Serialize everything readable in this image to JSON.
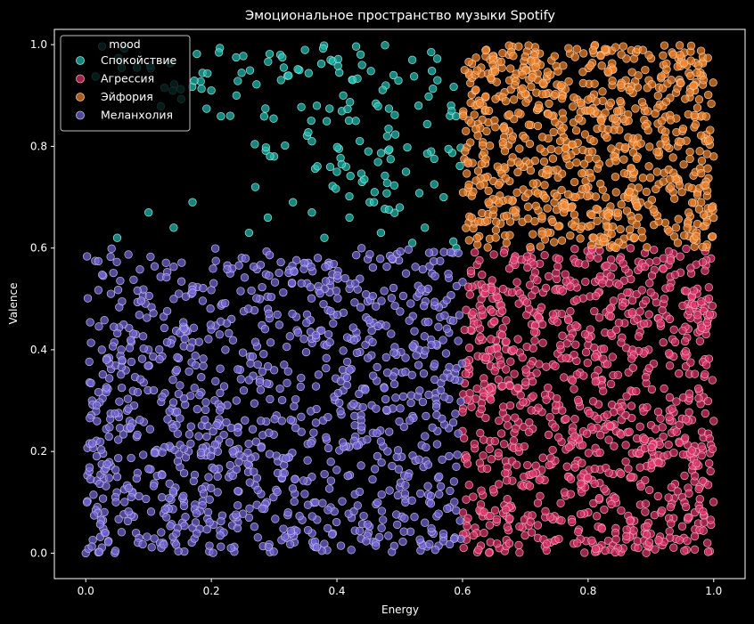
{
  "chart_data": {
    "type": "scatter",
    "title": "Эмоциональное пространство музыки Spotify",
    "xlabel": "Energy",
    "ylabel": "Valence",
    "xlim": [
      -0.05,
      1.05
    ],
    "ylim": [
      -0.05,
      1.03
    ],
    "xticks": [
      "0.0",
      "0.2",
      "0.4",
      "0.6",
      "0.8",
      "1.0"
    ],
    "yticks": [
      "0.0",
      "0.2",
      "0.4",
      "0.6",
      "0.8",
      "1.0"
    ],
    "grid": false,
    "legend": {
      "title": "mood",
      "position": "top-left"
    },
    "series": [
      {
        "name": "Спокойствие",
        "color": "#1fbfb0",
        "region": {
          "x": [
            0.0,
            0.6
          ],
          "y": [
            0.6,
            1.0
          ]
        },
        "points": [
          [
            0.05,
            0.62
          ],
          [
            0.1,
            0.67
          ],
          [
            0.14,
            0.64
          ],
          [
            0.17,
            0.69
          ],
          [
            0.2,
            0.91
          ],
          [
            0.23,
            0.86
          ],
          [
            0.24,
            0.9
          ],
          [
            0.26,
            0.63
          ],
          [
            0.27,
            0.72
          ],
          [
            0.29,
            0.66
          ],
          [
            0.3,
            0.78
          ],
          [
            0.31,
            0.98
          ],
          [
            0.33,
            0.69
          ],
          [
            0.34,
            0.95
          ],
          [
            0.36,
            0.81
          ],
          [
            0.38,
            0.62
          ],
          [
            0.39,
            0.97
          ],
          [
            0.4,
            0.75
          ],
          [
            0.41,
            0.9
          ],
          [
            0.42,
            0.66
          ],
          [
            0.43,
            0.85
          ],
          [
            0.44,
            0.96
          ],
          [
            0.45,
            0.79
          ],
          [
            0.46,
            0.71
          ],
          [
            0.47,
            0.63
          ],
          [
            0.48,
            0.82
          ],
          [
            0.49,
            0.94
          ],
          [
            0.5,
            0.68
          ],
          [
            0.51,
            0.75
          ],
          [
            0.52,
            0.61
          ],
          [
            0.53,
            0.88
          ],
          [
            0.54,
            0.64
          ],
          [
            0.55,
            0.79
          ],
          [
            0.56,
            0.93
          ],
          [
            0.57,
            0.7
          ],
          [
            0.58,
            0.86
          ],
          [
            0.59,
            0.6
          ],
          [
            0.44,
            0.73
          ],
          [
            0.36,
            0.67
          ],
          [
            0.52,
            0.97
          ]
        ]
      },
      {
        "name": "Агрессия",
        "color": "#e0356a",
        "region": {
          "x": [
            0.6,
            1.0
          ],
          "y": [
            0.0,
            0.6
          ]
        },
        "points": [
          [
            0.6,
            0.24
          ],
          [
            0.62,
            0.05
          ],
          [
            0.63,
            0.5
          ],
          [
            0.65,
            0.12
          ],
          [
            0.66,
            0.38
          ],
          [
            0.68,
            0.57
          ],
          [
            0.69,
            0.2
          ],
          [
            0.71,
            0.45
          ],
          [
            0.72,
            0.03
          ],
          [
            0.74,
            0.31
          ],
          [
            0.75,
            0.52
          ],
          [
            0.77,
            0.15
          ],
          [
            0.78,
            0.41
          ],
          [
            0.8,
            0.08
          ],
          [
            0.81,
            0.27
          ],
          [
            0.83,
            0.55
          ],
          [
            0.84,
            0.35
          ],
          [
            0.86,
            0.18
          ],
          [
            0.87,
            0.47
          ],
          [
            0.89,
            0.04
          ],
          [
            0.9,
            0.22
          ],
          [
            0.92,
            0.58
          ],
          [
            0.93,
            0.39
          ],
          [
            0.95,
            0.11
          ],
          [
            0.96,
            0.3
          ],
          [
            0.98,
            0.49
          ],
          [
            0.99,
            0.02
          ],
          [
            1.0,
            0.26
          ],
          [
            0.97,
            0.08
          ],
          [
            0.7,
            0.33
          ]
        ]
      },
      {
        "name": "Эйфория",
        "color": "#f2842c",
        "region": {
          "x": [
            0.6,
            1.0
          ],
          "y": [
            0.6,
            1.0
          ]
        },
        "points": [
          [
            0.61,
            0.65
          ],
          [
            0.62,
            0.88
          ],
          [
            0.64,
            0.74
          ],
          [
            0.65,
            0.95
          ],
          [
            0.67,
            0.61
          ],
          [
            0.68,
            0.82
          ],
          [
            0.7,
            0.7
          ],
          [
            0.71,
            0.97
          ],
          [
            0.73,
            0.77
          ],
          [
            0.74,
            0.63
          ],
          [
            0.76,
            0.9
          ],
          [
            0.77,
            0.68
          ],
          [
            0.79,
            0.85
          ],
          [
            0.8,
            0.72
          ],
          [
            0.82,
            0.98
          ],
          [
            0.83,
            0.62
          ],
          [
            0.85,
            0.8
          ],
          [
            0.86,
            0.93
          ],
          [
            0.88,
            0.66
          ],
          [
            0.89,
            0.87
          ],
          [
            0.91,
            0.75
          ],
          [
            0.92,
            0.96
          ],
          [
            0.94,
            0.64
          ],
          [
            0.95,
            0.83
          ],
          [
            0.97,
            0.91
          ],
          [
            0.98,
            0.69
          ],
          [
            1.0,
            0.78
          ],
          [
            0.96,
            0.72
          ],
          [
            0.72,
            0.84
          ],
          [
            0.87,
            0.7
          ]
        ]
      },
      {
        "name": "Меланхолия",
        "color": "#7466d8",
        "region": {
          "x": [
            0.0,
            0.6
          ],
          "y": [
            0.0,
            0.6
          ]
        },
        "points": [
          [
            0.0,
            0.0
          ],
          [
            0.01,
            0.3
          ],
          [
            0.03,
            0.04
          ],
          [
            0.04,
            0.51
          ],
          [
            0.05,
            0.15
          ],
          [
            0.07,
            0.26
          ],
          [
            0.08,
            0.04
          ],
          [
            0.1,
            0.4
          ],
          [
            0.11,
            0.2
          ],
          [
            0.13,
            0.09
          ],
          [
            0.14,
            0.5
          ],
          [
            0.15,
            0.33
          ],
          [
            0.17,
            0.05
          ],
          [
            0.18,
            0.23
          ],
          [
            0.2,
            0.44
          ],
          [
            0.21,
            0.12
          ],
          [
            0.23,
            0.55
          ],
          [
            0.24,
            0.3
          ],
          [
            0.26,
            0.07
          ],
          [
            0.27,
            0.19
          ],
          [
            0.29,
            0.48
          ],
          [
            0.3,
            0.36
          ],
          [
            0.32,
            0.03
          ],
          [
            0.33,
            0.26
          ],
          [
            0.35,
            0.57
          ],
          [
            0.36,
            0.15
          ],
          [
            0.38,
            0.41
          ],
          [
            0.39,
            0.09
          ],
          [
            0.41,
            0.32
          ],
          [
            0.42,
            0.52
          ],
          [
            0.44,
            0.22
          ],
          [
            0.45,
            0.04
          ],
          [
            0.47,
            0.45
          ],
          [
            0.48,
            0.28
          ],
          [
            0.5,
            0.13
          ],
          [
            0.51,
            0.55
          ],
          [
            0.53,
            0.37
          ],
          [
            0.54,
            0.06
          ],
          [
            0.56,
            0.24
          ],
          [
            0.57,
            0.49
          ],
          [
            0.59,
            0.17
          ],
          [
            0.55,
            0.42
          ]
        ]
      }
    ]
  }
}
